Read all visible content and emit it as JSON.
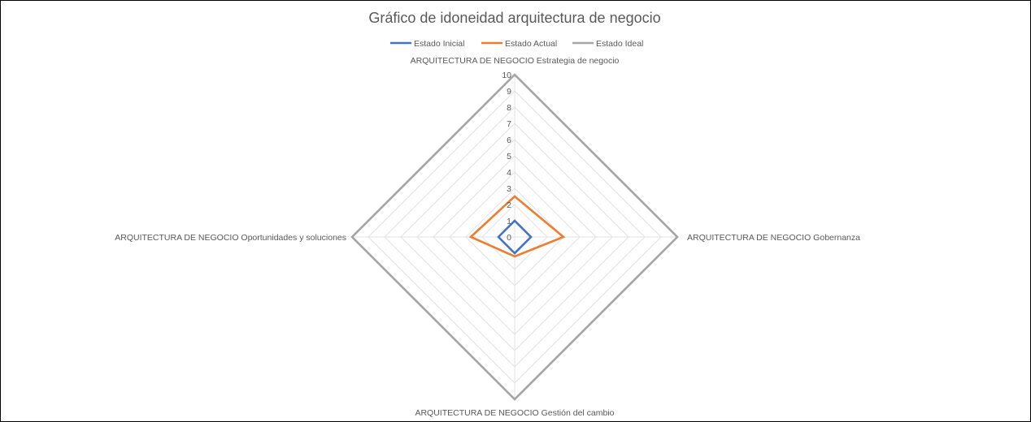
{
  "chart_data": {
    "type": "radar",
    "title": "Gráfico de idoneidad arquitectura de negocio",
    "axes": [
      "ARQUITECTURA DE NEGOCIO Estrategia de negocio",
      "ARQUITECTURA DE NEGOCIO Gobernanza",
      "ARQUITECTURA DE NEGOCIO Gestión del cambio",
      "ARQUITECTURA DE NEGOCIO Oportunidades y soluciones"
    ],
    "radial_ticks": [
      "0",
      "1",
      "2",
      "3",
      "4",
      "5",
      "6",
      "7",
      "8",
      "9",
      "10"
    ],
    "rlim": [
      0,
      10
    ],
    "legend_position": "top",
    "series": [
      {
        "name": "Estado Inicial",
        "color": "#4472C4",
        "values": [
          1,
          1,
          1,
          1
        ]
      },
      {
        "name": "Estado Actual",
        "color": "#ED7D31",
        "values": [
          2.5,
          3,
          1.2,
          2.7
        ]
      },
      {
        "name": "Estado Ideal",
        "color": "#A5A5A5",
        "values": [
          10,
          10,
          10,
          10
        ]
      }
    ]
  }
}
